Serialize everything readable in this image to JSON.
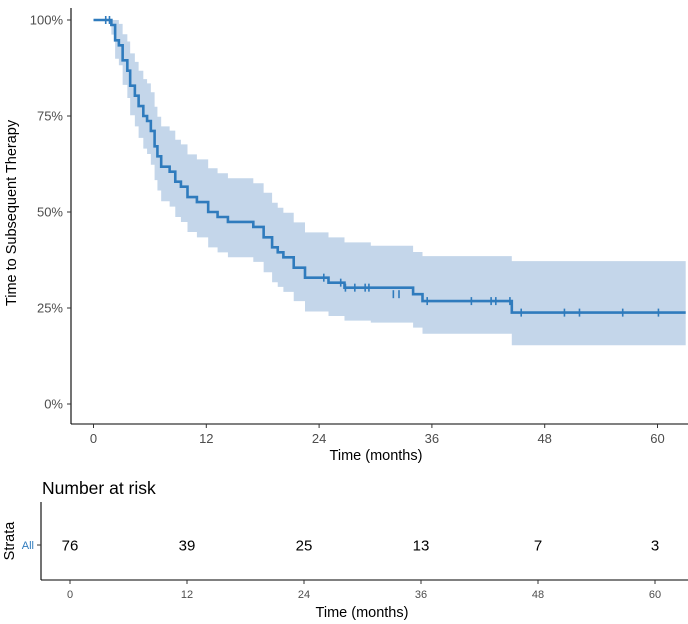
{
  "chart_data": [
    {
      "type": "step",
      "kind": "kaplan-meier",
      "title": "",
      "xlabel": "Time (months)",
      "ylabel": "Time to Subsequent Therapy",
      "xlim": [
        0,
        63
      ],
      "ylim": [
        0,
        1
      ],
      "xticks": [
        0,
        12,
        24,
        36,
        48,
        60
      ],
      "xtick_labels": [
        "0",
        "12",
        "24",
        "36",
        "48",
        "60"
      ],
      "yticks": [
        0,
        0.25,
        0.5,
        0.75,
        1.0
      ],
      "ytick_labels": [
        "0%",
        "25%",
        "50%",
        "75%",
        "100%"
      ],
      "grid": false,
      "colors": {
        "line": "#2f7bbd",
        "band": "#c4d6ea",
        "axis": "#000000",
        "text": "#4d4d4d"
      },
      "series": [
        {
          "name": "All",
          "steps": [
            [
              0,
              1.0
            ],
            [
              1.9,
              0.987
            ],
            [
              2.3,
              0.947
            ],
            [
              2.7,
              0.934
            ],
            [
              3.1,
              0.895
            ],
            [
              3.6,
              0.868
            ],
            [
              3.9,
              0.829
            ],
            [
              4.4,
              0.803
            ],
            [
              4.8,
              0.776
            ],
            [
              5.3,
              0.75
            ],
            [
              5.7,
              0.737
            ],
            [
              6.1,
              0.711
            ],
            [
              6.5,
              0.671
            ],
            [
              6.8,
              0.645
            ],
            [
              7.2,
              0.618
            ],
            [
              8.1,
              0.605
            ],
            [
              8.7,
              0.579
            ],
            [
              9.3,
              0.566
            ],
            [
              10.0,
              0.539
            ],
            [
              11.0,
              0.526
            ],
            [
              12.2,
              0.5
            ],
            [
              13.2,
              0.487
            ],
            [
              14.3,
              0.474
            ],
            [
              17.0,
              0.461
            ],
            [
              18.1,
              0.434
            ],
            [
              19.0,
              0.408
            ],
            [
              19.6,
              0.395
            ],
            [
              20.2,
              0.382
            ],
            [
              21.3,
              0.355
            ],
            [
              22.5,
              0.329
            ],
            [
              25.0,
              0.316
            ],
            [
              26.7,
              0.303
            ],
            [
              34.0,
              0.286
            ],
            [
              35.0,
              0.268
            ],
            [
              44.5,
              0.238
            ],
            [
              63.0,
              0.238
            ]
          ],
          "ci": [
            [
              0,
              1.0,
              1.0
            ],
            [
              1.9,
              0.962,
              1.0
            ],
            [
              2.3,
              0.899,
              1.0
            ],
            [
              2.7,
              0.882,
              0.99
            ],
            [
              3.1,
              0.831,
              0.963
            ],
            [
              3.6,
              0.797,
              0.944
            ],
            [
              3.9,
              0.752,
              0.913
            ],
            [
              4.4,
              0.723,
              0.891
            ],
            [
              4.8,
              0.693,
              0.868
            ],
            [
              5.3,
              0.665,
              0.846
            ],
            [
              5.7,
              0.651,
              0.835
            ],
            [
              6.1,
              0.623,
              0.812
            ],
            [
              6.5,
              0.583,
              0.774
            ],
            [
              6.8,
              0.556,
              0.748
            ],
            [
              7.2,
              0.528,
              0.723
            ],
            [
              8.1,
              0.514,
              0.712
            ],
            [
              8.7,
              0.487,
              0.688
            ],
            [
              9.3,
              0.474,
              0.676
            ],
            [
              10.0,
              0.448,
              0.65
            ],
            [
              11.0,
              0.434,
              0.637
            ],
            [
              12.2,
              0.408,
              0.614
            ],
            [
              13.2,
              0.395,
              0.601
            ],
            [
              14.3,
              0.382,
              0.588
            ],
            [
              17.0,
              0.37,
              0.575
            ],
            [
              18.1,
              0.343,
              0.55
            ],
            [
              19.0,
              0.317,
              0.524
            ],
            [
              19.6,
              0.305,
              0.511
            ],
            [
              20.2,
              0.292,
              0.498
            ],
            [
              21.3,
              0.268,
              0.473
            ],
            [
              22.5,
              0.241,
              0.447
            ],
            [
              25.0,
              0.229,
              0.434
            ],
            [
              26.7,
              0.217,
              0.421
            ],
            [
              29.5,
              0.212,
              0.412
            ],
            [
              34.0,
              0.199,
              0.396
            ],
            [
              35.0,
              0.183,
              0.385
            ],
            [
              44.5,
              0.153,
              0.372
            ],
            [
              63.0,
              0.153,
              0.372
            ]
          ],
          "censored": [
            [
              1.3,
              1.0
            ],
            [
              1.7,
              1.0
            ],
            [
              24.5,
              0.329
            ],
            [
              26.3,
              0.316
            ],
            [
              26.8,
              0.303
            ],
            [
              27.8,
              0.303
            ],
            [
              28.9,
              0.303
            ],
            [
              29.3,
              0.303
            ],
            [
              31.9,
              0.286
            ],
            [
              32.5,
              0.286
            ],
            [
              35.5,
              0.268
            ],
            [
              40.2,
              0.268
            ],
            [
              42.3,
              0.268
            ],
            [
              42.8,
              0.268
            ],
            [
              44.3,
              0.268
            ],
            [
              45.5,
              0.238
            ],
            [
              50.1,
              0.238
            ],
            [
              51.7,
              0.238
            ],
            [
              56.3,
              0.238
            ],
            [
              60.1,
              0.238
            ]
          ]
        }
      ]
    },
    {
      "type": "table",
      "title": "Number at risk",
      "ylabel": "Strata",
      "xlabel": "Time (months)",
      "xticks": [
        0,
        12,
        24,
        36,
        48,
        60
      ],
      "xtick_labels": [
        "0",
        "12",
        "24",
        "36",
        "48",
        "60"
      ],
      "strata": [
        "All"
      ],
      "values": [
        [
          76,
          39,
          25,
          13,
          7,
          3
        ]
      ]
    }
  ]
}
